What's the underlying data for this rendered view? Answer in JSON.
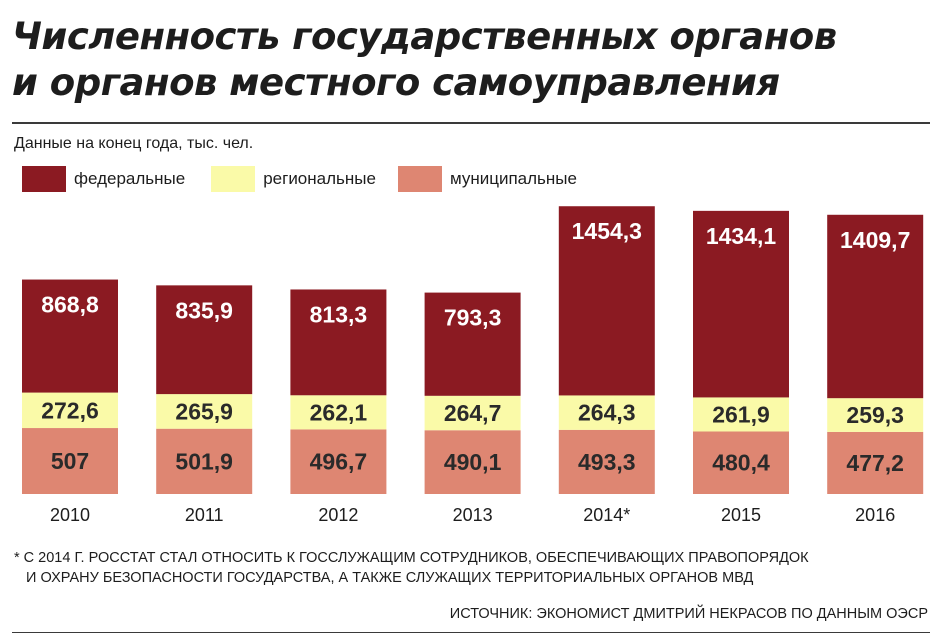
{
  "title_line1": "Численность государственных органов",
  "title_line2": "и органов местного самоуправления",
  "colors": {
    "federal": "#8b1a22",
    "regional": "#fafaa8",
    "municipal": "#de8672",
    "label_light": "#ffffff",
    "label_dark": "#2a2a2a"
  },
  "chart_data": {
    "type": "bar",
    "stacked": true,
    "title": "Численность государственных органов и органов местного самоуправления",
    "subtitle": "Данные на конец года, тыс. чел.",
    "categories": [
      "2010",
      "2011",
      "2012",
      "2013",
      "2014*",
      "2015",
      "2016"
    ],
    "series": [
      {
        "name": "муниципальные",
        "key": "municipal",
        "values": [
          507,
          501.9,
          496.7,
          490.1,
          493.3,
          480.4,
          477.2
        ],
        "labels": [
          "507",
          "501,9",
          "496,7",
          "490,1",
          "493,3",
          "480,4",
          "477,2"
        ]
      },
      {
        "name": "региональные",
        "key": "regional",
        "values": [
          272.6,
          265.9,
          262.1,
          264.7,
          264.3,
          261.9,
          259.3
        ],
        "labels": [
          "272,6",
          "265,9",
          "262,1",
          "264,7",
          "264,3",
          "261,9",
          "259,3"
        ]
      },
      {
        "name": "федеральные",
        "key": "federal",
        "values": [
          868.8,
          835.9,
          813.3,
          793.3,
          1454.3,
          1434.1,
          1409.7
        ],
        "labels": [
          "868,8",
          "835,9",
          "813,3",
          "793,3",
          "1454,3",
          "1434,1",
          "1409,7"
        ]
      }
    ],
    "legend": [
      "федеральные",
      "региональные",
      "муниципальные"
    ],
    "legend_position": "top-left",
    "ylim": [
      0,
      2200
    ],
    "grid": false
  },
  "footnote_line1": "* С 2014 Г. РОССТАТ СТАЛ ОТНОСИТЬ К ГОССЛУЖАЩИМ СОТРУДНИКОВ, ОБЕСПЕЧИВАЮЩИХ ПРАВОПОРЯДОК",
  "footnote_line2": "И ОХРАНУ БЕЗОПАСНОСТИ ГОСУДАРСТВА, А ТАКЖЕ СЛУЖАЩИХ ТЕРРИТОРИАЛЬНЫХ ОРГАНОВ МВД",
  "source": "ИСТОЧНИК: ЭКОНОМИСТ ДМИТРИЙ НЕКРАСОВ ПО ДАННЫМ ОЭСР"
}
